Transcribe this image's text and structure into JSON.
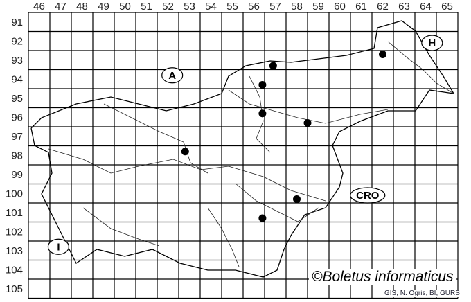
{
  "map": {
    "column_labels": [
      "46",
      "47",
      "48",
      "49",
      "50",
      "51",
      "52",
      "53",
      "54",
      "55",
      "56",
      "57",
      "58",
      "59",
      "60",
      "61",
      "62",
      "63",
      "64",
      "65"
    ],
    "row_labels": [
      "91",
      "92",
      "93",
      "94",
      "95",
      "96",
      "97",
      "98",
      "99",
      "100",
      "101",
      "102",
      "103",
      "104",
      "105"
    ],
    "country_labels": [
      {
        "text": "A",
        "col": 52.7,
        "row": 94.3
      },
      {
        "text": "H",
        "col": 64.8,
        "row": 92.6
      },
      {
        "text": "CRO",
        "col": 61.8,
        "row": 100.6
      },
      {
        "text": "I",
        "col": 47.4,
        "row": 103.3
      }
    ],
    "records": [
      {
        "col": 57.4,
        "row": 93.8
      },
      {
        "col": 56.9,
        "row": 94.8
      },
      {
        "col": 56.9,
        "row": 96.3
      },
      {
        "col": 59.0,
        "row": 96.8
      },
      {
        "col": 62.5,
        "row": 93.2
      },
      {
        "col": 53.3,
        "row": 98.3
      },
      {
        "col": 58.5,
        "row": 100.8
      },
      {
        "col": 56.9,
        "row": 101.8
      }
    ],
    "record_color": "#000000"
  },
  "copyright": "©Boletus informaticus",
  "credit": "GIS, N. Ogris, BI, GURS"
}
